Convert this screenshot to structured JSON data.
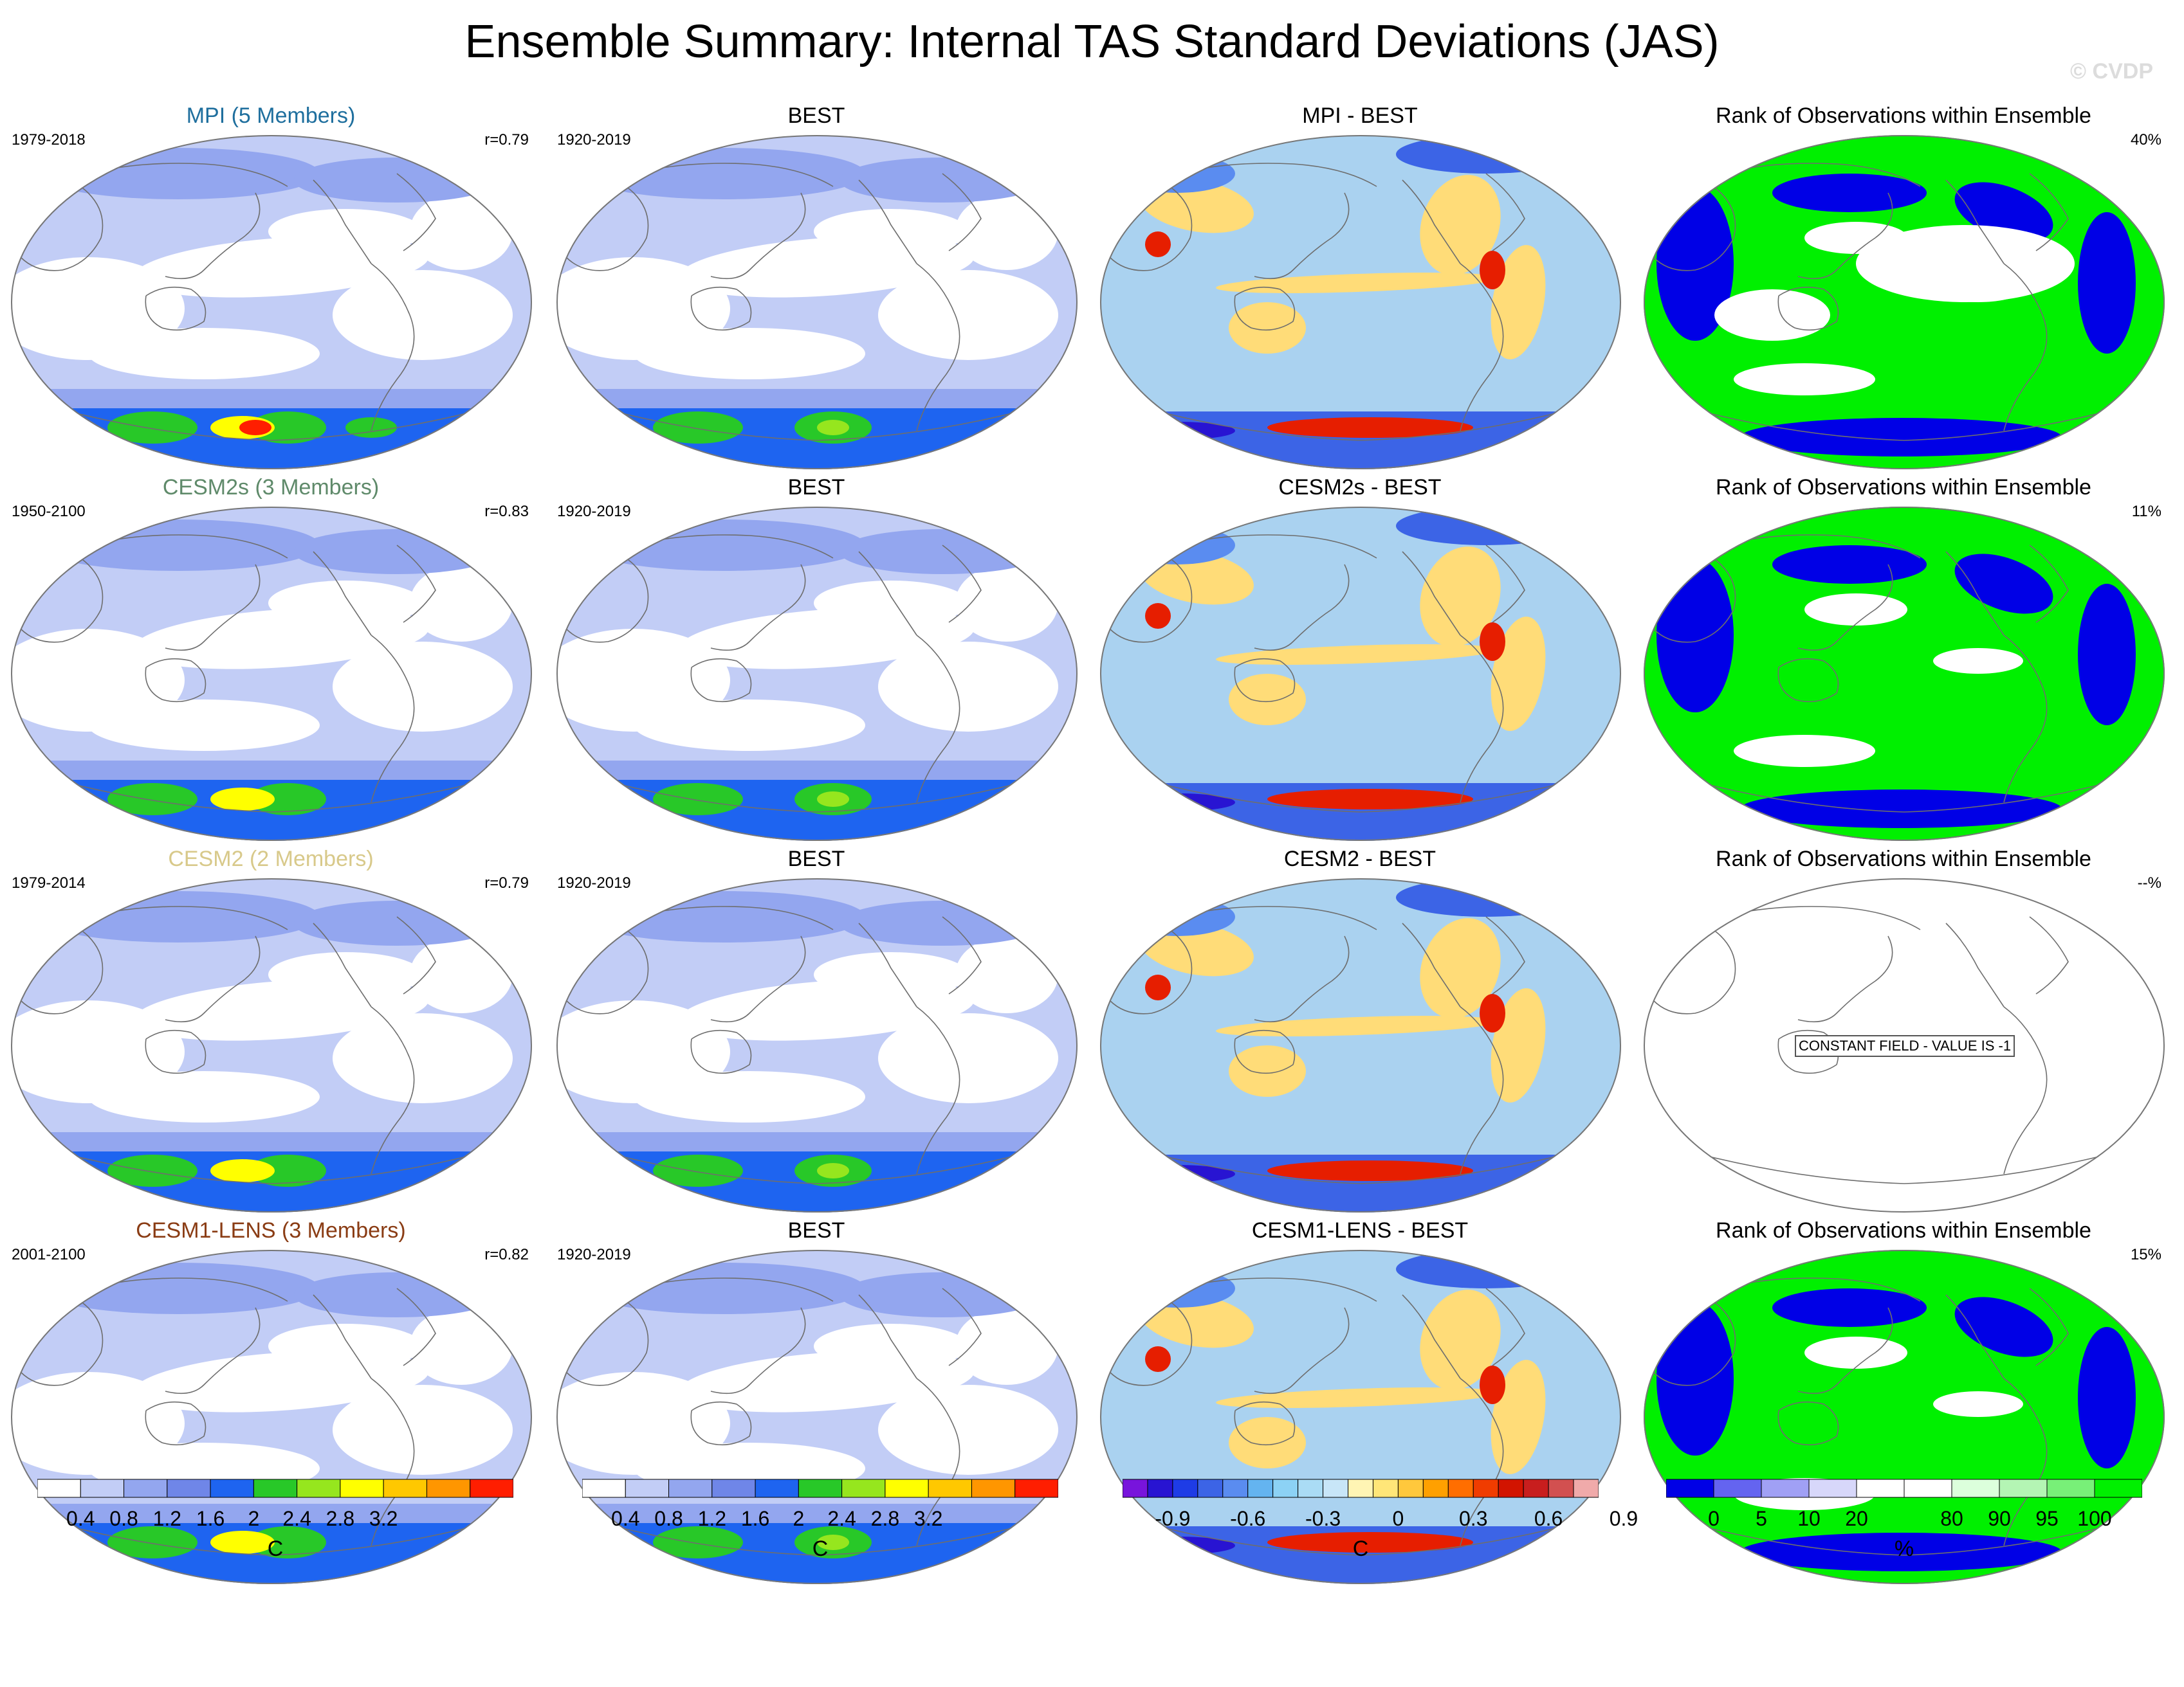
{
  "title": "Ensemble Summary: Internal TAS Standard Deviations (JAS)",
  "watermark": "© CVDP",
  "colors": {
    "white": "#ffffff",
    "ens_light": "#c2cdf6",
    "ens_mid": "#93a6ef",
    "ens_blue": "#1e64f0",
    "ens_green": "#28c828",
    "ens_yellow": "#ffff00",
    "ens_red": "#ff1e00",
    "diff_lightblue": "#aad2f0",
    "diff_yellow": "#ffdc78",
    "diff_red": "#e61e00",
    "rank_blue": "#0000e6",
    "rank_green": "#00f000",
    "coast": "#6e6e6e"
  },
  "rows": [
    {
      "model_title": "MPI (5 Members)",
      "model_title_color": "#1f6f9e",
      "model_years": "1979-2018",
      "correlation": "r=0.79",
      "obs_title": "BEST",
      "obs_years": "1920-2019",
      "diff_title": "MPI - BEST",
      "rank_title": "Rank of Observations within Ensemble",
      "rank_pct": "40%",
      "rank_note": ""
    },
    {
      "model_title": "CESM2s (3 Members)",
      "model_title_color": "#5f8a6a",
      "model_years": "1950-2100",
      "correlation": "r=0.83",
      "obs_title": "BEST",
      "obs_years": "1920-2019",
      "diff_title": "CESM2s - BEST",
      "rank_title": "Rank of Observations within Ensemble",
      "rank_pct": "11%",
      "rank_note": ""
    },
    {
      "model_title": "CESM2 (2 Members)",
      "model_title_color": "#d8c98a",
      "model_years": "1979-2014",
      "correlation": "r=0.79",
      "obs_title": "BEST",
      "obs_years": "1920-2019",
      "diff_title": "CESM2 - BEST",
      "rank_title": "Rank of Observations within Ensemble",
      "rank_pct": "--%",
      "rank_note": "CONSTANT FIELD - VALUE IS -1"
    },
    {
      "model_title": "CESM1-LENS (3 Members)",
      "model_title_color": "#8a3c14",
      "model_years": "2001-2100",
      "correlation": "r=0.82",
      "obs_title": "BEST",
      "obs_years": "1920-2019",
      "diff_title": "CESM1-LENS - BEST",
      "rank_title": "Rank of Observations within Ensemble",
      "rank_pct": "15%",
      "rank_note": ""
    }
  ],
  "colorbars": [
    {
      "unit": "C",
      "colors": [
        "#ffffff",
        "#c2cdf6",
        "#93a6ef",
        "#6f86e8",
        "#1e64f0",
        "#28c828",
        "#96e61e",
        "#ffff00",
        "#ffc800",
        "#ff9600",
        "#ff1e00"
      ],
      "labels": [
        "0.4",
        "0.8",
        "1.2",
        "1.6",
        "2",
        "2.4",
        "2.8",
        "3.2"
      ]
    },
    {
      "unit": "C",
      "colors": [
        "#ffffff",
        "#c2cdf6",
        "#93a6ef",
        "#6f86e8",
        "#1e64f0",
        "#28c828",
        "#96e61e",
        "#ffff00",
        "#ffc800",
        "#ff9600",
        "#ff1e00"
      ],
      "labels": [
        "0.4",
        "0.8",
        "1.2",
        "1.6",
        "2",
        "2.4",
        "2.8",
        "3.2"
      ]
    },
    {
      "unit": "C",
      "colors": [
        "#7814dc",
        "#2814d2",
        "#1e3ce6",
        "#3c64e6",
        "#5a8cf0",
        "#64b4f0",
        "#8cd2f5",
        "#aadcf5",
        "#c8e6f8",
        "#fff5b4",
        "#ffe678",
        "#ffc83c",
        "#ffa000",
        "#ff6e00",
        "#f03c00",
        "#d21400",
        "#c81e1e",
        "#d25050",
        "#f0aaaa"
      ],
      "labels": [
        "-0.9",
        "-0.6",
        "-0.3",
        "0",
        "0.3",
        "0.6",
        "0.9"
      ]
    },
    {
      "unit": "%",
      "colors": [
        "#0000e6",
        "#6464f0",
        "#a0a0f5",
        "#d7d7fa",
        "#ffffff",
        "#ffffff",
        "#dcffdc",
        "#b4f5b4",
        "#78f078",
        "#00f000"
      ],
      "labels": [
        "0",
        "5",
        "10",
        "20",
        "80",
        "90",
        "95",
        "100"
      ]
    }
  ]
}
